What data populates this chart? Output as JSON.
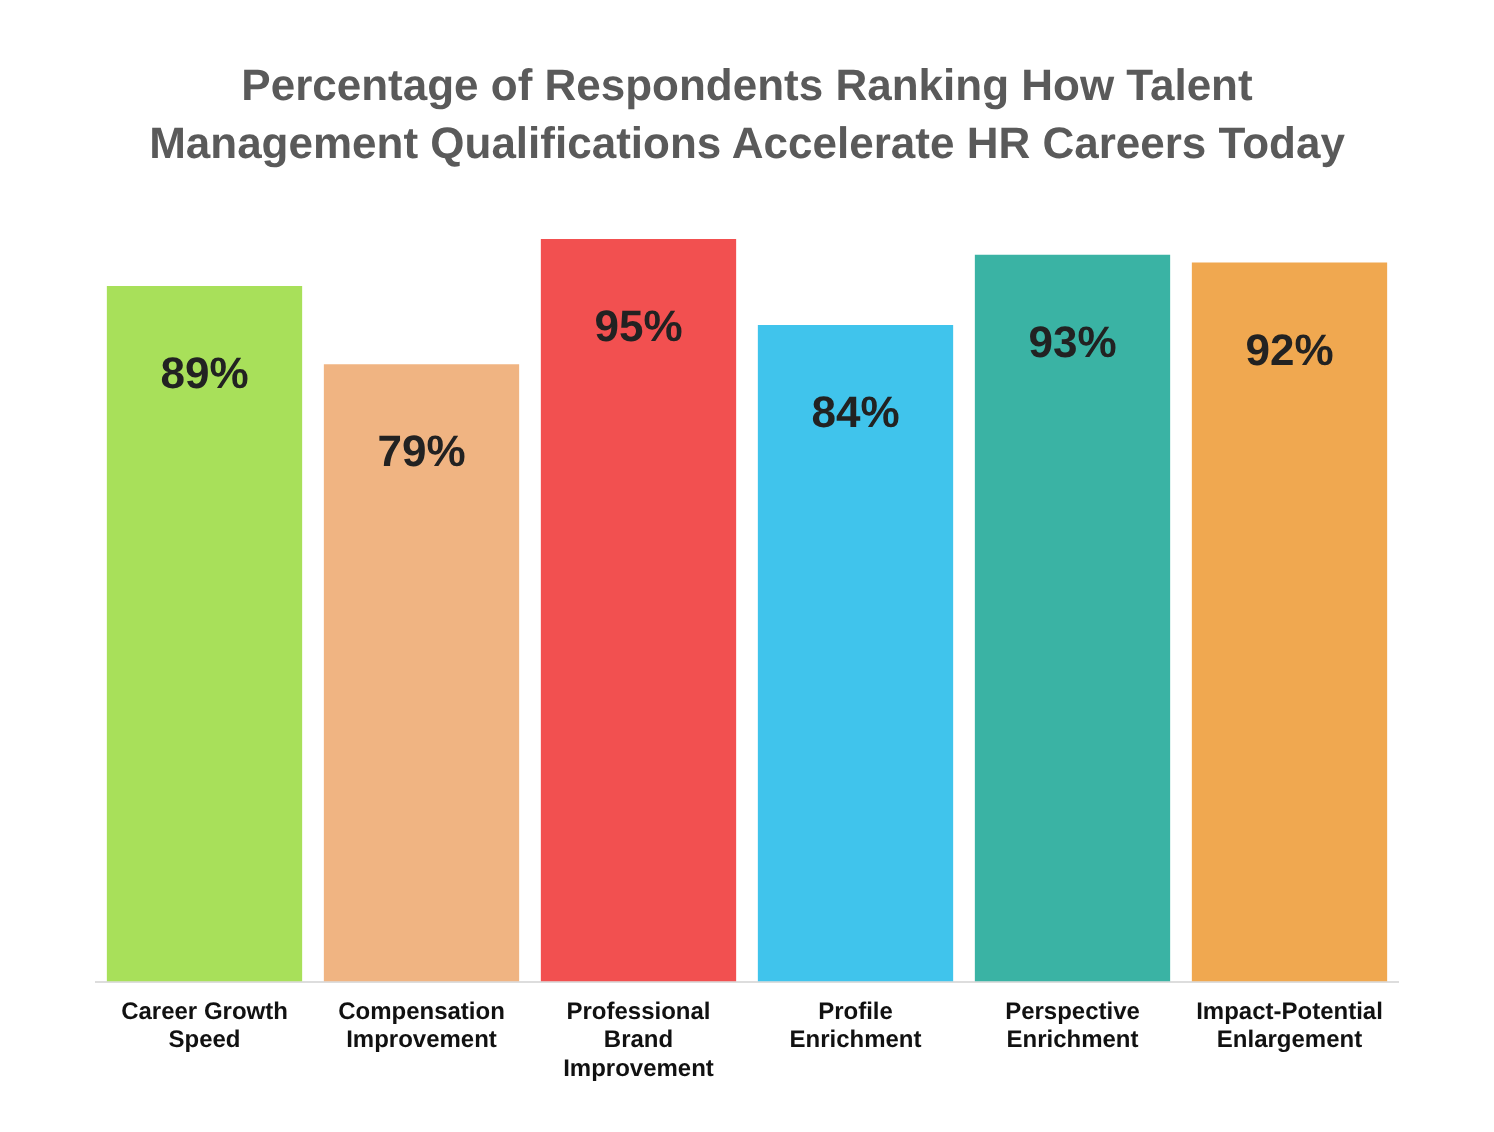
{
  "chart_data": {
    "type": "bar",
    "title": "Percentage of Respondents Ranking How Talent Management Qualifications Accelerate HR Careers Today",
    "categories": [
      "Career Growth Speed",
      "Compensation Improvement",
      "Professional Brand Improvement",
      "Profile Enrichment",
      "Perspective Enrichment",
      "Impact-Potential Enlargement"
    ],
    "values": [
      89,
      79,
      95,
      84,
      93,
      92
    ],
    "value_labels": [
      "89%",
      "79%",
      "95%",
      "84%",
      "93%",
      "92%"
    ],
    "colors": [
      "#a8e05a",
      "#f0b482",
      "#f25050",
      "#40c4ec",
      "#3ab3a4",
      "#f0a850"
    ],
    "grid": false,
    "legend": false
  }
}
